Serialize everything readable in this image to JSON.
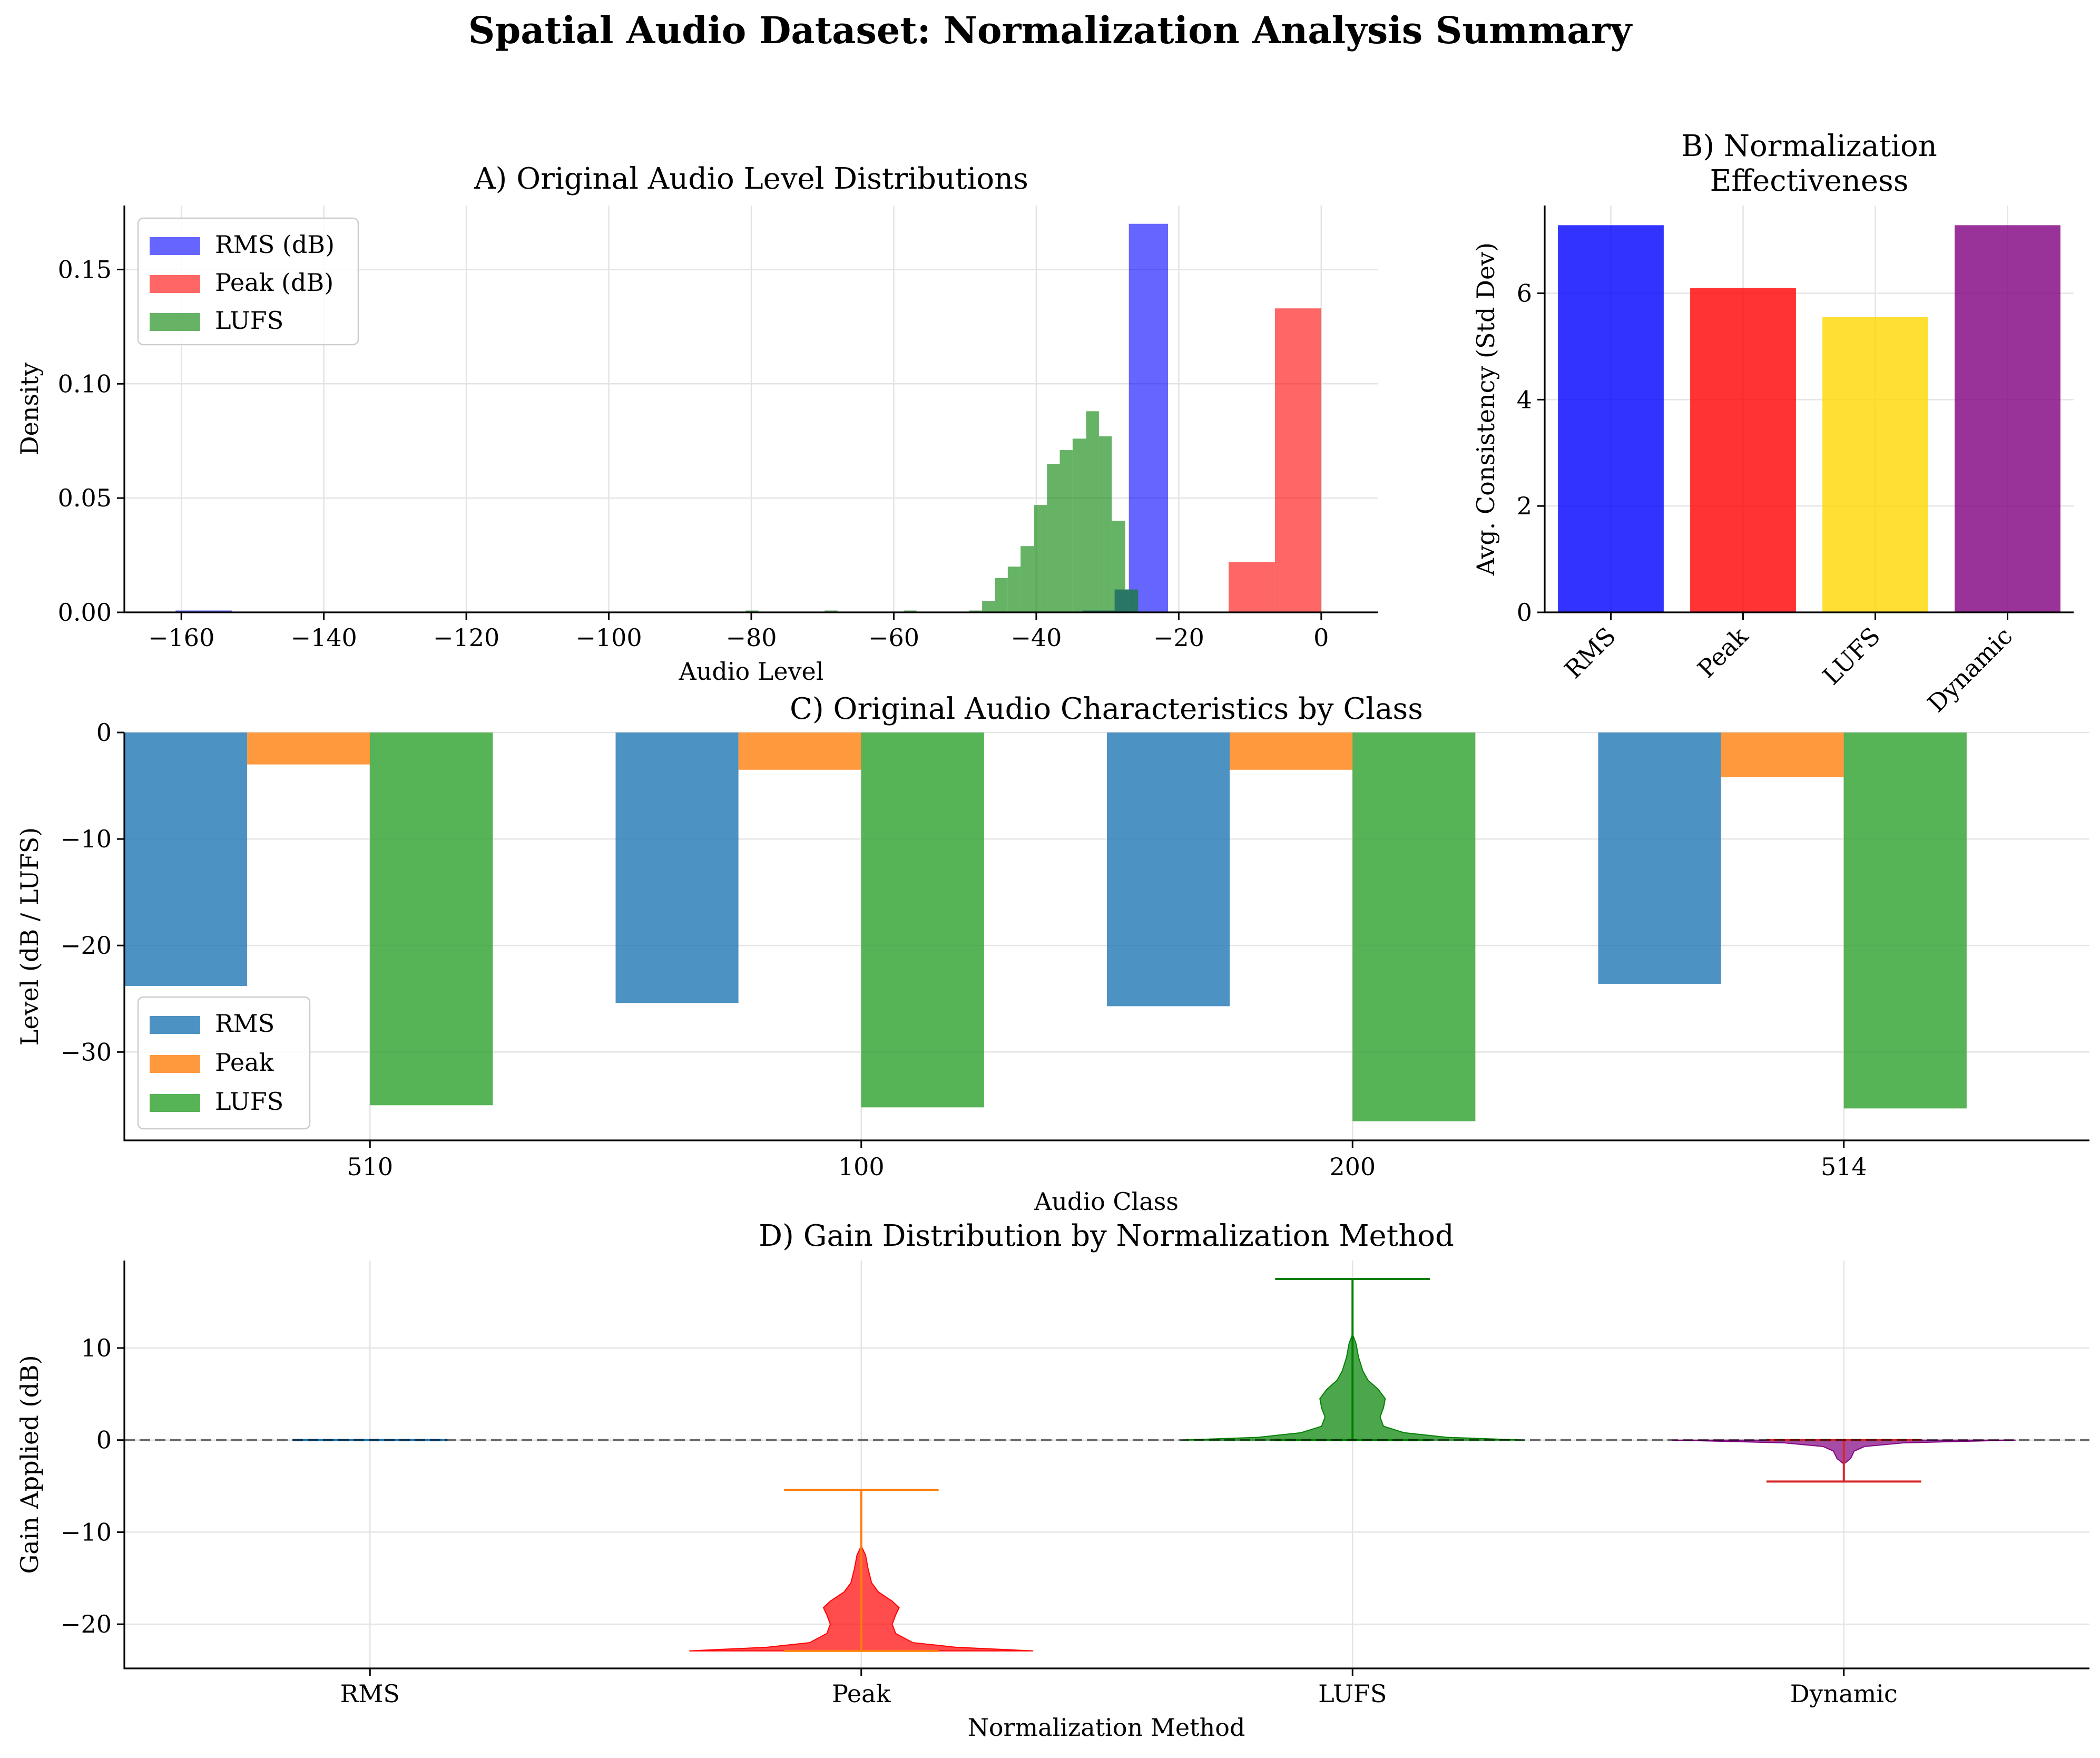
{
  "figure": {
    "title": "Spatial Audio Dataset: Normalization Analysis Summary"
  },
  "chart_data": [
    {
      "id": "A",
      "type": "bar",
      "subtype": "histogram",
      "title": "A) Original Audio Level Distributions",
      "xlabel": "Audio Level",
      "ylabel": "Density",
      "xlim": [
        -168,
        8
      ],
      "ylim": [
        0,
        0.178
      ],
      "xticks": [
        -160,
        -140,
        -120,
        -100,
        -80,
        -60,
        -40,
        -20,
        0
      ],
      "xtick_labels": [
        "−160",
        "−140",
        "−120",
        "−100",
        "−80",
        "−60",
        "−40",
        "−20",
        "0"
      ],
      "yticks": [
        0,
        0.05,
        0.1,
        0.15
      ],
      "ytick_labels": [
        "0.00",
        "0.05",
        "0.10",
        "0.15"
      ],
      "legend": "upper-left",
      "grid": true,
      "series": [
        {
          "name": "RMS (dB)",
          "color": "#0000ff",
          "opacity": 0.6,
          "bins": [
            {
              "x0": -160.8,
              "x1": -152.9,
              "y": 0.0008
            },
            {
              "x0": -33.5,
              "x1": -29.0,
              "y": 0.0008
            },
            {
              "x0": -29.0,
              "x1": -27.0,
              "y": 0.01
            },
            {
              "x0": -27.0,
              "x1": -21.5,
              "y": 0.17
            }
          ]
        },
        {
          "name": "Peak (dB)",
          "color": "#ff0000",
          "opacity": 0.6,
          "bins": [
            {
              "x0": -13.0,
              "x1": -6.5,
              "y": 0.022
            },
            {
              "x0": -6.5,
              "x1": 0.0,
              "y": 0.133
            }
          ]
        },
        {
          "name": "LUFS",
          "color": "#008000",
          "opacity": 0.6,
          "bins": [
            {
              "x0": -80.8,
              "x1": -79.0,
              "y": 0.0008
            },
            {
              "x0": -69.7,
              "x1": -67.9,
              "y": 0.0008
            },
            {
              "x0": -58.6,
              "x1": -56.8,
              "y": 0.0008
            },
            {
              "x0": -49.4,
              "x1": -47.6,
              "y": 0.0008
            },
            {
              "x0": -47.6,
              "x1": -45.8,
              "y": 0.005
            },
            {
              "x0": -45.8,
              "x1": -44.0,
              "y": 0.015
            },
            {
              "x0": -44.0,
              "x1": -42.2,
              "y": 0.02
            },
            {
              "x0": -42.2,
              "x1": -40.3,
              "y": 0.029
            },
            {
              "x0": -40.3,
              "x1": -38.5,
              "y": 0.047
            },
            {
              "x0": -38.5,
              "x1": -36.7,
              "y": 0.065
            },
            {
              "x0": -36.7,
              "x1": -34.9,
              "y": 0.071
            },
            {
              "x0": -34.9,
              "x1": -33.0,
              "y": 0.076
            },
            {
              "x0": -33.0,
              "x1": -31.2,
              "y": 0.088
            },
            {
              "x0": -31.2,
              "x1": -29.4,
              "y": 0.077
            },
            {
              "x0": -29.4,
              "x1": -27.5,
              "y": 0.04
            },
            {
              "x0": -27.5,
              "x1": -25.7,
              "y": 0.01
            }
          ]
        }
      ]
    },
    {
      "id": "B",
      "type": "bar",
      "title_lines": [
        "B) Normalization",
        "Effectiveness"
      ],
      "xlabel": "",
      "ylabel": "Avg. Consistency (Std Dev)",
      "categories": [
        "RMS",
        "Peak",
        "LUFS",
        "Dynamic"
      ],
      "values": [
        7.28,
        6.1,
        5.55,
        7.28
      ],
      "colors": [
        "#0000ff",
        "#ff0000",
        "#ffd700",
        "#800080"
      ],
      "opacity": 0.8,
      "ylim": [
        0,
        7.65
      ],
      "yticks": [
        0,
        2,
        4,
        6
      ],
      "ytick_labels": [
        "0",
        "2",
        "4",
        "6"
      ],
      "xtick_rotation": 45,
      "grid": true
    },
    {
      "id": "C",
      "type": "bar",
      "subtype": "grouped",
      "title": "C) Original Audio Characteristics by Class",
      "xlabel": "Audio Class",
      "ylabel": "Level (dB / LUFS)",
      "categories": [
        "510",
        "100",
        "200",
        "514"
      ],
      "series": [
        {
          "name": "RMS",
          "color": "#1f77b4",
          "values": [
            -23.8,
            -25.4,
            -25.7,
            -23.6
          ]
        },
        {
          "name": "Peak",
          "color": "#ff7f0e",
          "values": [
            -3.0,
            -3.5,
            -3.5,
            -4.2
          ]
        },
        {
          "name": "LUFS",
          "color": "#2ca02c",
          "values": [
            -35.0,
            -35.2,
            -36.5,
            -35.3
          ]
        }
      ],
      "opacity": 0.8,
      "ylim": [
        -38.3,
        0
      ],
      "yticks": [
        0,
        -10,
        -20,
        -30
      ],
      "ytick_labels": [
        "0",
        "−10",
        "−20",
        "−30"
      ],
      "legend": "lower-left",
      "grid": true
    },
    {
      "id": "D",
      "type": "violin",
      "title": "D) Gain Distribution by Normalization Method",
      "xlabel": "Normalization Method",
      "ylabel": "Gain Applied (dB)",
      "categories": [
        "RMS",
        "Peak",
        "LUFS",
        "Dynamic"
      ],
      "ylim": [
        -24.8,
        19.5
      ],
      "yticks": [
        10,
        0,
        -10,
        -20
      ],
      "ytick_labels": [
        "10",
        "0",
        "−10",
        "−20"
      ],
      "reference_line": 0,
      "grid": true,
      "violins": [
        {
          "name": "RMS",
          "min": 0,
          "max": 0,
          "fill": "#1f77b4",
          "line": "#1f77b4",
          "profile": []
        },
        {
          "name": "Peak",
          "min": -22.9,
          "max": -5.4,
          "fill": "#ff0000",
          "line": "#ff7f0e",
          "profile": [
            [
              -22.9,
              1.0
            ],
            [
              -22.5,
              0.55
            ],
            [
              -22.0,
              0.3
            ],
            [
              -21.0,
              0.2
            ],
            [
              -20.0,
              0.18
            ],
            [
              -19.0,
              0.2
            ],
            [
              -18.2,
              0.22
            ],
            [
              -17.5,
              0.18
            ],
            [
              -16.5,
              0.1
            ],
            [
              -15.5,
              0.06
            ],
            [
              -14.0,
              0.04
            ],
            [
              -12.5,
              0.025
            ],
            [
              -11.5,
              0.0
            ]
          ]
        },
        {
          "name": "LUFS",
          "min": 0.0,
          "max": 17.5,
          "fill": "#008000",
          "line": "#008000",
          "profile": [
            [
              0.0,
              1.0
            ],
            [
              0.3,
              0.55
            ],
            [
              0.8,
              0.3
            ],
            [
              1.5,
              0.18
            ],
            [
              2.5,
              0.16
            ],
            [
              3.5,
              0.18
            ],
            [
              4.5,
              0.19
            ],
            [
              5.5,
              0.15
            ],
            [
              6.5,
              0.09
            ],
            [
              7.5,
              0.06
            ],
            [
              9.0,
              0.035
            ],
            [
              10.5,
              0.02
            ],
            [
              11.5,
              0.0
            ]
          ]
        },
        {
          "name": "Dynamic",
          "min": -4.5,
          "max": 0.0,
          "fill": "#800080",
          "line": "#d62728",
          "profile": [
            [
              0.0,
              1.0
            ],
            [
              -0.3,
              0.35
            ],
            [
              -0.7,
              0.12
            ],
            [
              -1.2,
              0.06
            ],
            [
              -2.0,
              0.04
            ],
            [
              -2.6,
              0.0
            ]
          ]
        }
      ]
    }
  ]
}
